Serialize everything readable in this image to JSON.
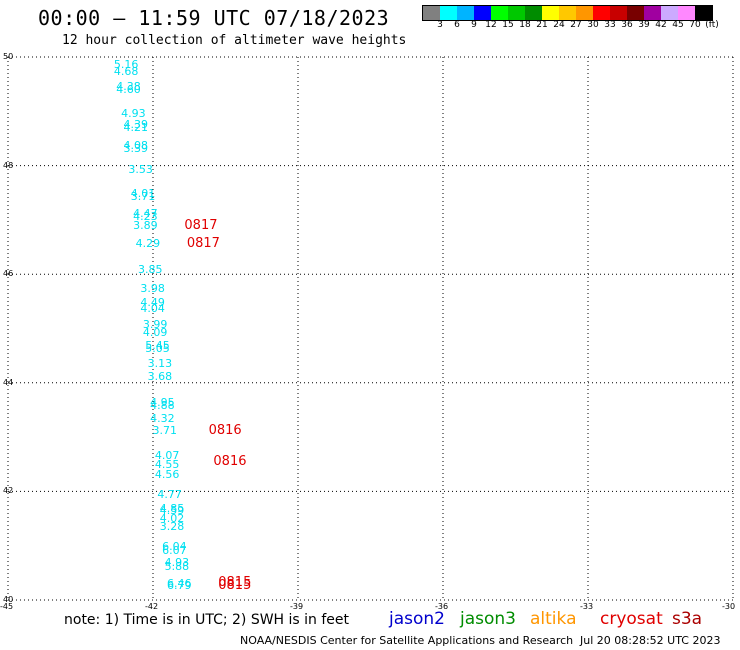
{
  "header": {
    "title": "00:00 — 11:59 UTC 07/18/2023",
    "subtitle": "12 hour collection of altimeter wave heights"
  },
  "legend": {
    "colors": [
      "#808080",
      "#00ffff",
      "#00b4ff",
      "#0000ff",
      "#00ff00",
      "#00c800",
      "#008c00",
      "#ffff00",
      "#ffc800",
      "#ff9600",
      "#ff0000",
      "#c80000",
      "#780000",
      "#a000a0",
      "#ccaaff",
      "#ff88ff",
      "#000000"
    ],
    "labels": [
      "3",
      "6",
      "9",
      "12",
      "15",
      "18",
      "21",
      "24",
      "27",
      "30",
      "33",
      "36",
      "39",
      "42",
      "45",
      "70",
      "(ft)"
    ]
  },
  "axes": {
    "y_ticks": [
      "50",
      "48",
      "46",
      "44",
      "42",
      "40"
    ],
    "x_ticks": [
      "-45",
      "-42",
      "-39",
      "-36",
      "-33",
      "-30"
    ]
  },
  "observations": [
    {
      "v": "5.16",
      "lon": -42.5,
      "lat": 49.85
    },
    {
      "v": "4.68",
      "lon": -42.5,
      "lat": 49.72
    },
    {
      "v": "4.38",
      "lon": -42.45,
      "lat": 49.44
    },
    {
      "v": "4.60",
      "lon": -42.45,
      "lat": 49.39
    },
    {
      "v": "4.93",
      "lon": -42.35,
      "lat": 48.95
    },
    {
      "v": "4.39",
      "lon": -42.3,
      "lat": 48.74
    },
    {
      "v": "4.21",
      "lon": -42.3,
      "lat": 48.69
    },
    {
      "v": "4.08",
      "lon": -42.3,
      "lat": 48.37
    },
    {
      "v": "3.39",
      "lon": -42.3,
      "lat": 48.3
    },
    {
      "v": "3.53",
      "lon": -42.2,
      "lat": 47.92
    },
    {
      "v": "4.01",
      "lon": -42.15,
      "lat": 47.47
    },
    {
      "v": "3.71",
      "lon": -42.15,
      "lat": 47.43
    },
    {
      "v": "4.47",
      "lon": -42.1,
      "lat": 47.1
    },
    {
      "v": "4.23",
      "lon": -42.1,
      "lat": 47.05
    },
    {
      "v": "3.89",
      "lon": -42.1,
      "lat": 46.89
    },
    {
      "v": "4.29",
      "lon": -42.05,
      "lat": 46.55
    },
    {
      "v": "3.85",
      "lon": -42.0,
      "lat": 46.07
    },
    {
      "v": "3.98",
      "lon": -41.95,
      "lat": 45.72
    },
    {
      "v": "4.49",
      "lon": -41.95,
      "lat": 45.47
    },
    {
      "v": "4.04",
      "lon": -41.95,
      "lat": 45.35
    },
    {
      "v": "3.99",
      "lon": -41.9,
      "lat": 45.07
    },
    {
      "v": "4.09",
      "lon": -41.9,
      "lat": 44.92
    },
    {
      "v": "5.45",
      "lon": -41.85,
      "lat": 44.68
    },
    {
      "v": "5.05",
      "lon": -41.85,
      "lat": 44.62
    },
    {
      "v": "3.13",
      "lon": -41.8,
      "lat": 44.35
    },
    {
      "v": "3.68",
      "lon": -41.8,
      "lat": 44.1
    },
    {
      "v": "4.95",
      "lon": -41.75,
      "lat": 43.63
    },
    {
      "v": "4.88",
      "lon": -41.75,
      "lat": 43.58
    },
    {
      "v": "4.32",
      "lon": -41.75,
      "lat": 43.34
    },
    {
      "v": "3.71",
      "lon": -41.7,
      "lat": 43.12
    },
    {
      "v": "4.07",
      "lon": -41.65,
      "lat": 42.66
    },
    {
      "v": "4.55",
      "lon": -41.65,
      "lat": 42.48
    },
    {
      "v": "4.56",
      "lon": -41.65,
      "lat": 42.3
    },
    {
      "v": "4.77",
      "lon": -41.6,
      "lat": 41.93
    },
    {
      "v": "4.85",
      "lon": -41.55,
      "lat": 41.68
    },
    {
      "v": "4.59",
      "lon": -41.55,
      "lat": 41.63
    },
    {
      "v": "4.02",
      "lon": -41.55,
      "lat": 41.49
    },
    {
      "v": "3.28",
      "lon": -41.55,
      "lat": 41.35
    },
    {
      "v": "6.04",
      "lon": -41.5,
      "lat": 40.98
    },
    {
      "v": "6.07",
      "lon": -41.5,
      "lat": 40.9
    },
    {
      "v": "4.93",
      "lon": -41.45,
      "lat": 40.69
    },
    {
      "v": "5.88",
      "lon": -41.45,
      "lat": 40.61
    },
    {
      "v": "6.46",
      "lon": -41.4,
      "lat": 40.3
    },
    {
      "v": "6.79",
      "lon": -41.4,
      "lat": 40.25
    }
  ],
  "pass_labels": [
    {
      "t": "0817",
      "lon": -41.35,
      "lat": 46.89
    },
    {
      "t": "0817",
      "lon": -41.3,
      "lat": 46.55
    },
    {
      "t": "0816",
      "lon": -40.85,
      "lat": 43.12
    },
    {
      "t": "0816",
      "lon": -40.75,
      "lat": 42.55
    },
    {
      "t": "0815",
      "lon": -40.65,
      "lat": 40.31
    },
    {
      "t": "0815",
      "lon": -40.65,
      "lat": 40.25
    }
  ],
  "note": "note: 1) Time is in UTC; 2) SWH is in feet",
  "satellites": [
    {
      "name": "jason2",
      "color": "#0000cc"
    },
    {
      "name": "jason3",
      "color": "#008c00"
    },
    {
      "name": "altika",
      "color": "#ff9600"
    },
    {
      "name": "cryosat",
      "color": "#e00000"
    },
    {
      "name": "s3a",
      "color": "#aa0000"
    }
  ],
  "credit": "NOAA/NESDIS Center for Satellite Applications and Research",
  "timestamp": "Jul 20 08:28:52 UTC 2023"
}
